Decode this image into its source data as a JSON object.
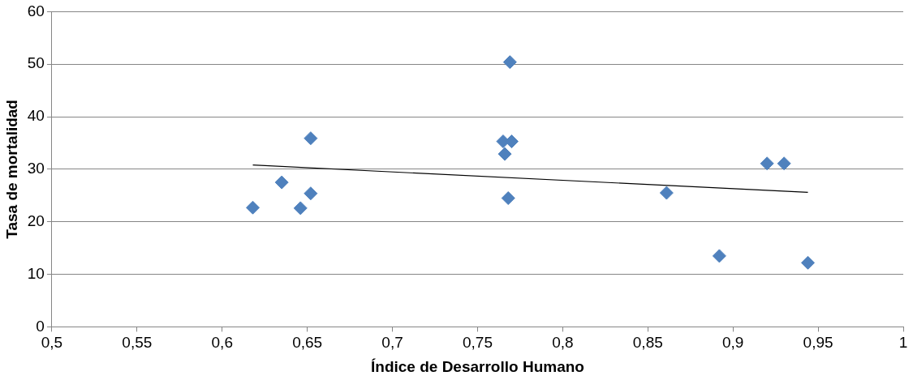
{
  "chart_data": {
    "type": "scatter",
    "xlabel": "Índice de Desarrollo Humano",
    "ylabel": "Tasa de mortalidad",
    "xlim": [
      0.5,
      1
    ],
    "xticks": [
      {
        "value": 0.5,
        "label": "0,5"
      },
      {
        "value": 0.55,
        "label": "0,55"
      },
      {
        "value": 0.6,
        "label": "0,6"
      },
      {
        "value": 0.65,
        "label": "0,65"
      },
      {
        "value": 0.7,
        "label": "0,7"
      },
      {
        "value": 0.75,
        "label": "0,75"
      },
      {
        "value": 0.8,
        "label": "0,8"
      },
      {
        "value": 0.85,
        "label": "0,85"
      },
      {
        "value": 0.9,
        "label": "0,9"
      },
      {
        "value": 0.95,
        "label": "0,95"
      },
      {
        "value": 1,
        "label": "1"
      }
    ],
    "ylim": [
      0,
      60
    ],
    "yticks": [
      0,
      10,
      20,
      30,
      40,
      50,
      60
    ],
    "grid": "y",
    "legend": false,
    "series": [
      {
        "marker": "diamond",
        "color": "#4f81bd",
        "x": [
          0.618,
          0.635,
          0.652,
          0.652,
          0.646,
          0.769,
          0.765,
          0.77,
          0.766,
          0.768,
          0.861,
          0.892,
          0.92,
          0.93,
          0.944
        ],
        "values": [
          22.7,
          27.5,
          35.9,
          25.4,
          22.6,
          50.4,
          35.3,
          35.3,
          32.9,
          24.5,
          25.5,
          13.5,
          31.1,
          31.1,
          12.2
        ]
      },
      {
        "type": "line",
        "marker": "none",
        "color": "#000000",
        "x": [
          0.618,
          0.944
        ],
        "values": [
          30.8,
          25.6
        ]
      }
    ]
  }
}
